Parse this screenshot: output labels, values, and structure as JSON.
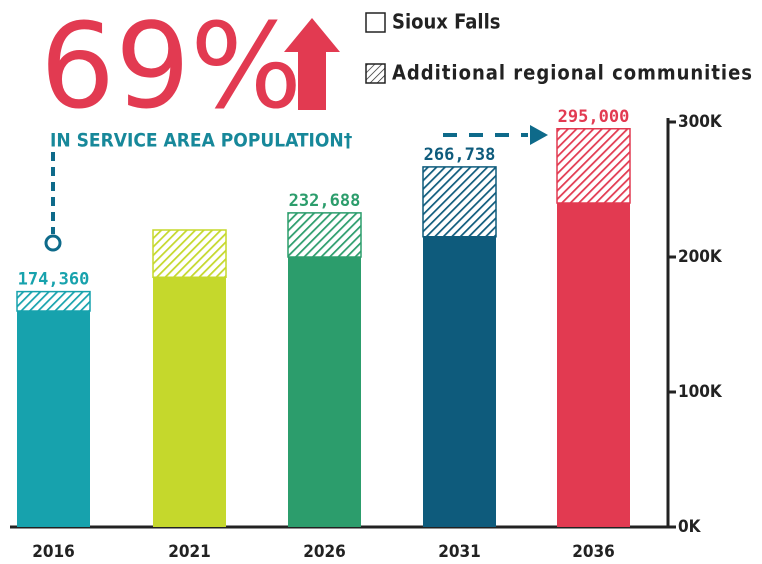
{
  "chart_data": {
    "type": "stacked_bar",
    "headline": "69%",
    "subtitle": "IN SERVICE AREA POPULATION†",
    "categories": [
      "2016",
      "2021",
      "2026",
      "2031",
      "2036"
    ],
    "category_colors": [
      "#17a2ad",
      "#c5d82c",
      "#2c9d6c",
      "#0e5b7c",
      "#e23a51"
    ],
    "series": [
      {
        "name": "Sioux Falls",
        "values": [
          160000,
          185000,
          200000,
          215000,
          240000
        ]
      },
      {
        "name": "Additional regional communities",
        "hatched": true,
        "values": [
          14360,
          35000,
          32688,
          51738,
          55000
        ]
      }
    ],
    "totals": [
      174360,
      null,
      232688,
      266738,
      295000
    ],
    "total_labels": [
      "174,360",
      null,
      "232,688",
      "266,738",
      "295,000"
    ],
    "ylim": [
      0,
      300000
    ],
    "yticks": [
      {
        "value": 0,
        "label": "0K"
      },
      {
        "value": 100000,
        "label": "100K"
      },
      {
        "value": 200000,
        "label": "200K"
      },
      {
        "value": 300000,
        "label": "300K"
      }
    ]
  }
}
